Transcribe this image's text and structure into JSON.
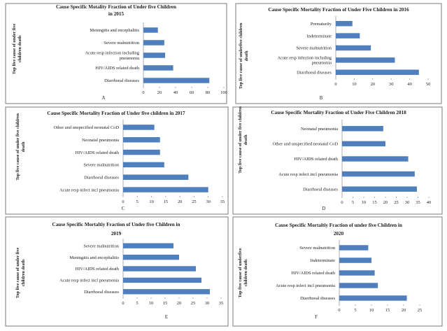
{
  "colors": {
    "bar": "#4f7fbd",
    "axis": "#999999",
    "border": "#7a7a7a"
  },
  "chart_data": [
    {
      "type": "bar",
      "orientation": "horizontal",
      "title_lines": [
        "Cause Specific Motality Fraction  of Under  five Children",
        "in 2015"
      ],
      "ylabel_lines": [
        "Top five cause of under five",
        "children death"
      ],
      "panel_letter": "A",
      "categories": [
        "Meningitis and encephalitis",
        "Severe malnutrition",
        "Acute resp infection including pneumonia",
        "HIV/AIDS related death",
        "Diarrhoeal diseases"
      ],
      "values": [
        18,
        26,
        27,
        37,
        82
      ],
      "xlim": [
        0,
        100
      ],
      "xticks": [
        0,
        20,
        40,
        60,
        80,
        100
      ]
    },
    {
      "type": "bar",
      "orientation": "horizontal",
      "title_lines": [
        "Cause Specific Mortality Fraction of Under Five Children  in 2016"
      ],
      "ylabel_lines": [
        "Top five cause of underfive children",
        "death"
      ],
      "panel_letter": "B",
      "categories": [
        "Prematurity",
        "Indeterminate",
        "Severe malnutrition",
        "Acute resp infection  including pneumonia",
        "Diarrhoeal diseases"
      ],
      "values": [
        9,
        13,
        19,
        32,
        45
      ],
      "xlim": [
        0,
        50
      ],
      "xticks": [
        0,
        10,
        20,
        30,
        40,
        50
      ]
    },
    {
      "type": "bar",
      "orientation": "horizontal",
      "title_lines": [
        "Cause Specific Mortality Fraction of Under five children  in 2017"
      ],
      "ylabel_lines": [
        "Top five cause of under five children",
        "death"
      ],
      "panel_letter": "C",
      "categories": [
        "Other and unspecified neonatal CoD",
        "Neonatal pneumonia",
        "HIV/AIDS related death",
        "Severe malnutrition",
        "Diarrhoeal diseases",
        "Acute resp infect incl pneumonia"
      ],
      "values": [
        11,
        13,
        13,
        14.5,
        23,
        30
      ],
      "xlim": [
        0,
        35
      ],
      "xticks": [
        0,
        5,
        10,
        15,
        20,
        25,
        30,
        35
      ]
    },
    {
      "type": "bar",
      "orientation": "horizontal",
      "title_lines": [
        "Cause Specific Mortality Fraction of Under Five Children  2018"
      ],
      "ylabel_lines": [
        "Top five cause of under five children",
        "death"
      ],
      "panel_letter": "D",
      "categories": [
        "Neonatal pneumonia",
        "Other and unspecified neonatal CoD",
        "HIV/AIDS related death",
        "Acute resp infect incl pneumonia",
        "Diarrhoeal diseases"
      ],
      "values": [
        19,
        20,
        30.5,
        33.5,
        34.5
      ],
      "xlim": [
        0,
        40
      ],
      "xticks": [
        0,
        5,
        10,
        15,
        20,
        25,
        30,
        35,
        40
      ]
    },
    {
      "type": "bar",
      "orientation": "horizontal",
      "title_lines": [
        "Cause Specific Mortaltiy Fraction of Under five Children  in",
        "2019"
      ],
      "ylabel_lines": [
        "Top five cause of under five",
        "children death"
      ],
      "panel_letter": "E",
      "categories": [
        "Severe malnutrition",
        "Meningitis and encephalitis",
        "HIV/AIDS related death",
        "Acute resp infect incl pneumonia",
        "Diarrhoeal diseases"
      ],
      "values": [
        18,
        20,
        26,
        28,
        31
      ],
      "xlim": [
        0,
        35
      ],
      "xticks": [
        0,
        5,
        10,
        15,
        20,
        25,
        30,
        35
      ]
    },
    {
      "type": "bar",
      "orientation": "horizontal",
      "title_lines": [
        "Cause Specific Mortaltiy Fraction of under five Children  in",
        "2020"
      ],
      "ylabel_lines": [
        "Top five cause of underfive",
        "children death"
      ],
      "panel_letter": "F",
      "categories": [
        "Severe malnutrition",
        "Indeterminate",
        "HIV/AIDS related death",
        "Acute resp infect incl pneumonia",
        "Diarrhoeal diseases"
      ],
      "values": [
        9,
        10,
        11,
        12,
        21
      ],
      "xlim": [
        0,
        25
      ],
      "xticks": [
        0,
        5,
        10,
        15,
        20,
        25
      ]
    }
  ]
}
